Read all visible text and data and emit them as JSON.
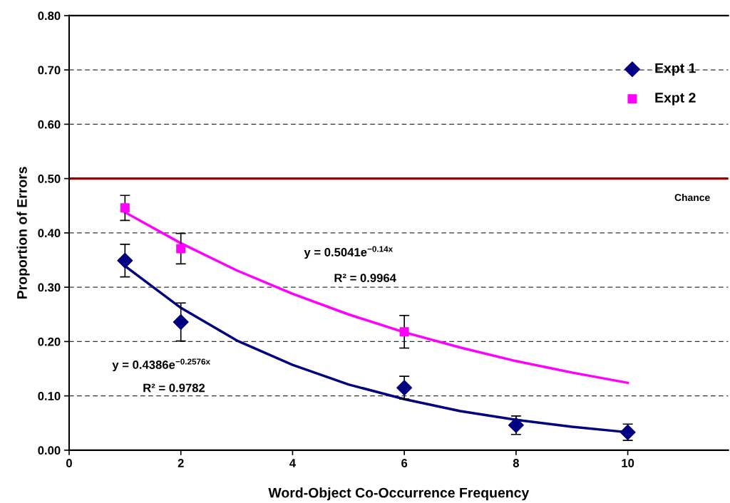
{
  "chart_data": {
    "type": "scatter",
    "xlabel": "Word-Object Co-Occurrence Frequency",
    "ylabel": "Proportion of Errors",
    "xlim": [
      0,
      11.8
    ],
    "xticks": [
      0,
      2,
      4,
      6,
      8,
      10
    ],
    "ylim": [
      0,
      0.8
    ],
    "yticks": [
      {
        "value": 0,
        "label": "0.00"
      },
      {
        "value": 0.1,
        "label": "0.10"
      },
      {
        "value": 0.2,
        "label": "0.20"
      },
      {
        "value": 0.3,
        "label": "0.30"
      },
      {
        "value": 0.4,
        "label": "0.40"
      },
      {
        "value": 0.5,
        "label": "0.50"
      },
      {
        "value": 0.6,
        "label": "0.60"
      },
      {
        "value": 0.7,
        "label": "0.70"
      },
      {
        "value": 0.8,
        "label": "0.80"
      }
    ],
    "grid": "y",
    "legend": "top right",
    "series": [
      {
        "type": "line",
        "color": "#000080",
        "x": [
          1,
          2,
          3,
          4,
          5,
          6,
          7,
          8,
          9,
          10
        ],
        "values": [
          0.339,
          0.262,
          0.202,
          0.157,
          0.121,
          0.094,
          0.072,
          0.056,
          0.043,
          0.033
        ]
      },
      {
        "type": "line",
        "color": "#ff00ff",
        "x": [
          1,
          2,
          3,
          4,
          5,
          6,
          7,
          8,
          9,
          10
        ],
        "values": [
          0.438,
          0.381,
          0.331,
          0.288,
          0.25,
          0.217,
          0.189,
          0.164,
          0.143,
          0.124
        ]
      },
      {
        "name": "Expt 1",
        "marker": "diamond",
        "color": "#000080",
        "x": [
          1,
          2,
          6,
          8,
          10
        ],
        "values": [
          0.349,
          0.236,
          0.115,
          0.046,
          0.033
        ],
        "errors": [
          0.03,
          0.035,
          0.021,
          0.017,
          0.015
        ]
      },
      {
        "name": "Expt 2",
        "marker": "square",
        "color": "#ff00ff",
        "x": [
          1,
          2,
          6
        ],
        "values": [
          0.446,
          0.371,
          0.218
        ],
        "errors": [
          0.023,
          0.028,
          0.03
        ]
      }
    ],
    "ref_lines": [
      {
        "axis": "y",
        "value": 0.5,
        "label": "Chance",
        "color": "#990000"
      }
    ],
    "annotations": [
      "y = 0.5041e$^{−0.14x}$",
      "R² = 0.9964",
      "y = 0.4386e$^{−0.2576x}$",
      "R² = 0.9782"
    ]
  }
}
